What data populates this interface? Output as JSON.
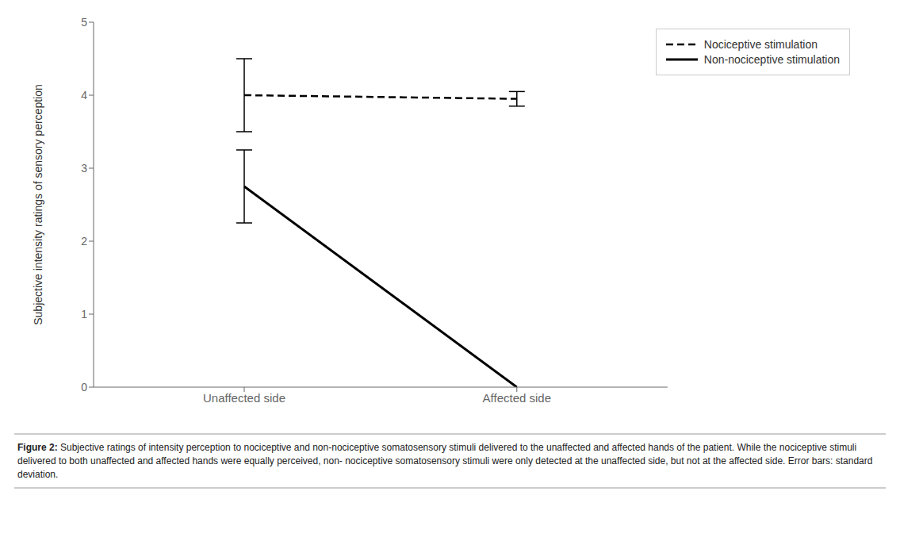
{
  "chart_data": {
    "type": "line",
    "categories": [
      "Unaffected side",
      "Affected side"
    ],
    "ylabel": "Subjective intensity ratings of sensory perception",
    "ylim": [
      0,
      5
    ],
    "yticks": [
      0,
      1,
      2,
      3,
      4,
      5
    ],
    "grid": false,
    "legend": "upper right",
    "series": [
      {
        "name": "Nociceptive stimulation",
        "color": "#000000",
        "line_style": "dashed",
        "values": [
          4.0,
          3.95
        ],
        "error": [
          0.5,
          0.1
        ]
      },
      {
        "name": "Non-nociceptive stimulation",
        "color": "#000000",
        "line_style": "solid",
        "values": [
          2.75,
          0.0
        ],
        "error": [
          0.5,
          null
        ]
      }
    ],
    "annotations": [
      "Figure 2:",
      " Subjective ratings of intensity perception to nociceptive and non-nociceptive somatosensory stimuli delivered to the unaffected and affected hands of the patient. While the nociceptive stimuli delivered to both unaffected and affected hands were equally perceived, non- nociceptive somatosensory stimuli were only detected at the unaffected side, but not at the affected side. Error bars: standard deviation."
    ]
  }
}
